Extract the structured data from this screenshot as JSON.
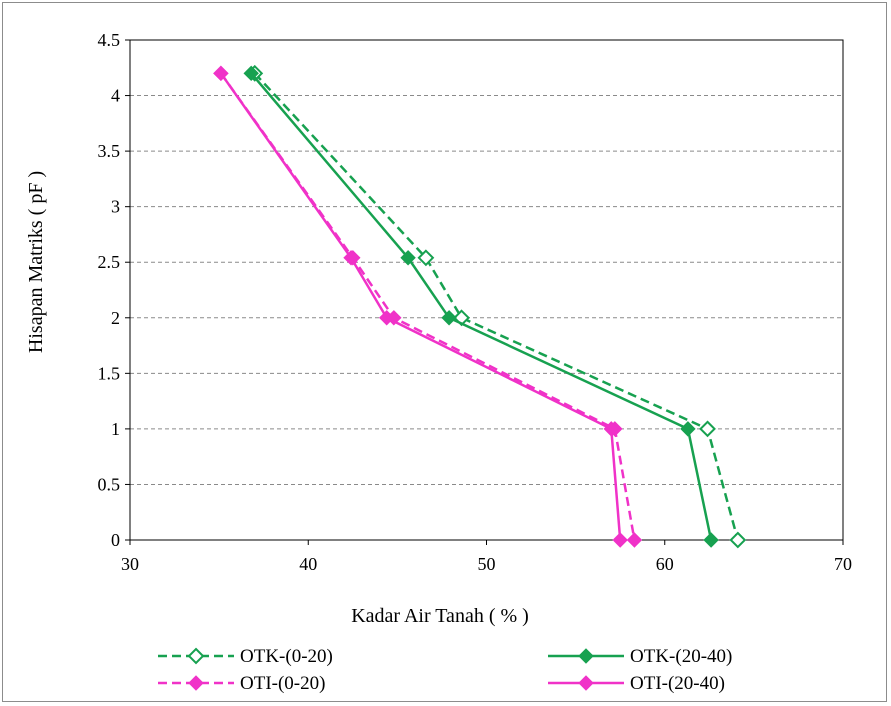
{
  "chart_data": {
    "type": "line",
    "xlabel": "Kadar  Air Tanah ( % )",
    "ylabel": "Hisapan Matriks ( pF )",
    "xlim": [
      30,
      70
    ],
    "ylim": [
      0,
      4.5
    ],
    "x_ticks": [
      "30",
      "40",
      "50",
      "60",
      "70"
    ],
    "y_ticks": [
      "0",
      "0.5",
      "1",
      "1.5",
      "2",
      "2.5",
      "3",
      "3.5",
      "4",
      "4.5"
    ],
    "grid": "horizontal dashed",
    "legend_position": "bottom",
    "series": [
      {
        "name": "OTK-(0-20)",
        "color": "#17a150",
        "line": "dashed",
        "marker": "diamond-open",
        "x": [
          37.0,
          46.6,
          48.6,
          62.4,
          64.1
        ],
        "y": [
          4.2,
          2.54,
          2.0,
          1.0,
          0.0
        ]
      },
      {
        "name": "OTK-(20-40)",
        "color": "#17a150",
        "line": "solid",
        "marker": "diamond-filled",
        "x": [
          36.8,
          45.6,
          47.9,
          61.3,
          62.6
        ],
        "y": [
          4.2,
          2.54,
          2.0,
          1.0,
          0.0
        ]
      },
      {
        "name": "OTI-(0-20)",
        "color": "#f032c8",
        "line": "dashed",
        "marker": "diamond-filled",
        "x": [
          35.1,
          42.5,
          44.8,
          57.2,
          58.3
        ],
        "y": [
          4.2,
          2.54,
          2.0,
          1.0,
          0.0
        ]
      },
      {
        "name": "OTI-(20-40)",
        "color": "#f032c8",
        "line": "solid",
        "marker": "diamond-filled",
        "x": [
          35.1,
          42.4,
          44.4,
          57.0,
          57.5
        ],
        "y": [
          4.2,
          2.54,
          2.0,
          1.0,
          0.0
        ]
      }
    ]
  }
}
